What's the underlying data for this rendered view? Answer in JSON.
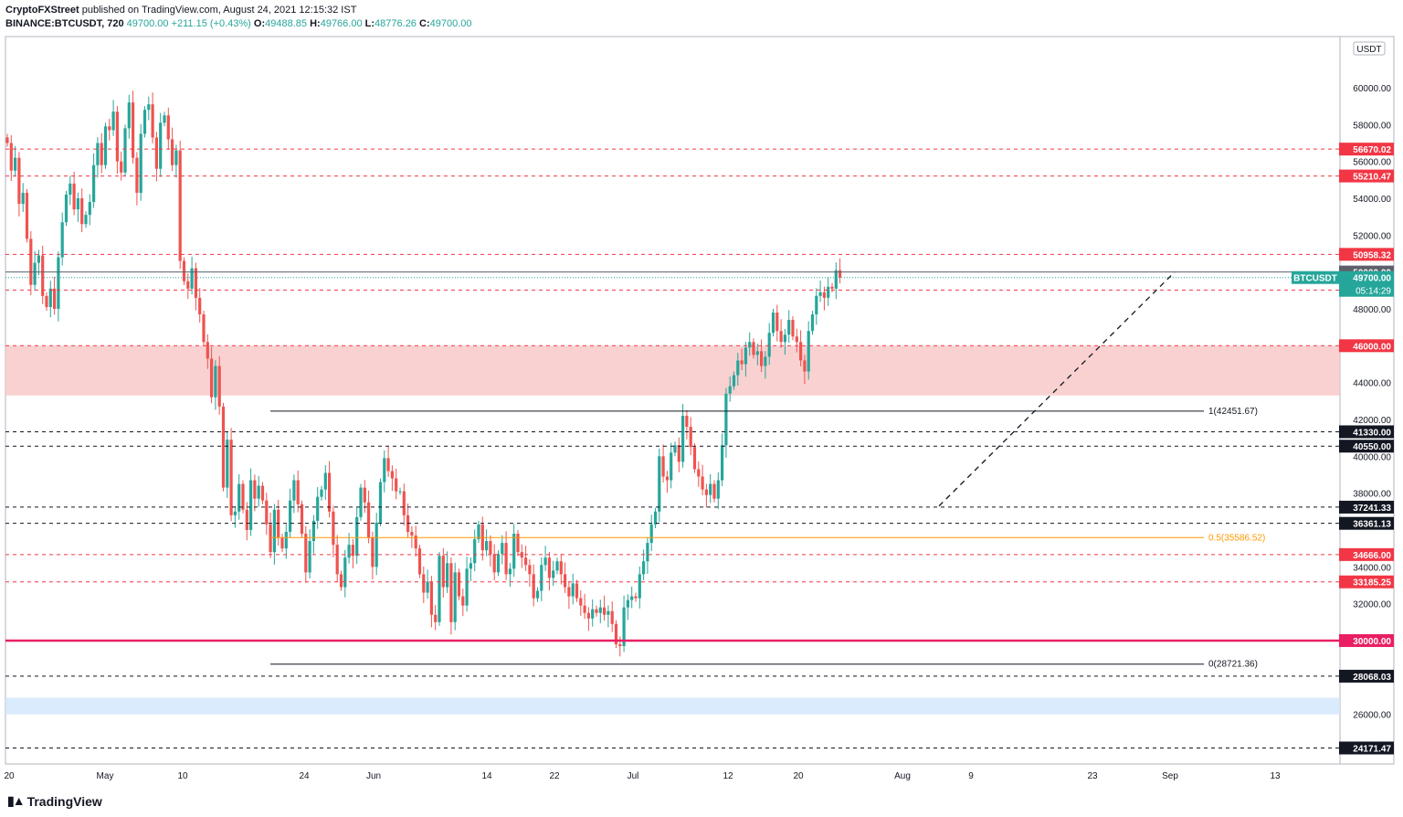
{
  "header": {
    "author": "CryptoFXStreet",
    "published": "published on TradingView.com, August 24, 2021 12:15:32 IST",
    "symbol": "BINANCE:BTCUSDT, 720",
    "last": "49700.00",
    "change": "+211.15 (+0.43%)",
    "o_label": "O:",
    "o": "49488.85",
    "h_label": "H:",
    "h": "49766.00",
    "l_label": "L:",
    "l": "48776.26",
    "c_label": "C:",
    "c": "49700.00"
  },
  "footer": {
    "brand": "TradingView"
  },
  "chart_data": {
    "type": "candlestick",
    "currency": "USDT",
    "x_tick_labels": [
      "20",
      "May",
      "10",
      "24",
      "Jun",
      "14",
      "22",
      "Jul",
      "12",
      "20",
      "Aug",
      "9",
      "23",
      "Sep",
      "13"
    ],
    "y_tick_labels": [
      "60000.00",
      "58000.00",
      "56000.00",
      "54000.00",
      "52000.00",
      "50000.00",
      "48000.00",
      "46000.00",
      "44000.00",
      "42000.00",
      "40000.00",
      "38000.00",
      "36000.00",
      "34000.00",
      "32000.00",
      "30000.00",
      "28000.00",
      "26000.00"
    ],
    "ylim": [
      23000,
      62500
    ],
    "price_levels": [
      {
        "value": 56670.02,
        "label": "56670.02",
        "style": "dashed",
        "color": "#f23645"
      },
      {
        "value": 55210.47,
        "label": "55210.47",
        "style": "dashed",
        "color": "#f23645"
      },
      {
        "value": 50958.32,
        "label": "50958.32",
        "style": "dashed",
        "color": "#f23645"
      },
      {
        "value": 50000.0,
        "label": "50000.00",
        "style": "solid",
        "color": "#5d606b"
      },
      {
        "value": 49024.12,
        "label": "49024.12",
        "style": "dashed",
        "color": "#f23645"
      },
      {
        "value": 46000.0,
        "label": "46000.00",
        "style": "dashed",
        "color": "#f23645"
      },
      {
        "value": 41330.0,
        "label": "41330.00",
        "style": "dashed",
        "color": "#131722"
      },
      {
        "value": 40550.0,
        "label": "40550.00",
        "style": "dashed",
        "color": "#131722"
      },
      {
        "value": 37241.33,
        "label": "37241.33",
        "style": "dashed",
        "color": "#131722"
      },
      {
        "value": 36361.13,
        "label": "36361.13",
        "style": "dashed",
        "color": "#131722"
      },
      {
        "value": 34666.0,
        "label": "34666.00",
        "style": "dashed",
        "color": "#f23645"
      },
      {
        "value": 33185.25,
        "label": "33185.25",
        "style": "dashed",
        "color": "#f23645"
      },
      {
        "value": 30000.0,
        "label": "30000.00",
        "style": "solid",
        "color": "#e91e63"
      },
      {
        "value": 28068.03,
        "label": "28068.03",
        "style": "dashed",
        "color": "#131722"
      },
      {
        "value": 24171.47,
        "label": "24171.47",
        "style": "dashed",
        "color": "#131722"
      }
    ],
    "last_price": {
      "symbol": "BTCUSDT",
      "value": 49700.0,
      "label": "49700.00",
      "countdown": "05:14:29"
    },
    "fib_levels": [
      {
        "label": "1(42451.67)",
        "value": 42451.67,
        "color": "#131722"
      },
      {
        "label": "0.5(35586.52)",
        "value": 35586.52,
        "color": "#ff9800"
      },
      {
        "label": "0(28721.36)",
        "value": 28721.36,
        "color": "#131722"
      }
    ],
    "zones": [
      {
        "from": 43300,
        "to": 46000,
        "color": "#f7c5c5"
      },
      {
        "from": 26000,
        "to": 26900,
        "color": "#cfe6fb"
      }
    ],
    "trendline": {
      "from": {
        "date": "2021-08-05",
        "value": 37300
      },
      "to": {
        "date": "2021-09-01",
        "value": 50000
      },
      "style": "dashed"
    },
    "candles_close": [
      57000,
      55500,
      56200,
      53700,
      54300,
      51800,
      49300,
      50500,
      50900,
      48700,
      48100,
      49100,
      48000,
      50800,
      52700,
      54200,
      54800,
      53400,
      54000,
      52600,
      53100,
      53800,
      55800,
      57000,
      55800,
      57900,
      57700,
      58700,
      56000,
      55400,
      57800,
      59200,
      56200,
      54300,
      57500,
      58800,
      59100,
      57300,
      55600,
      58100,
      58500,
      57200,
      55800,
      56600,
      50600,
      49500,
      49100,
      50200,
      48600,
      47700,
      46200,
      45300,
      43200,
      44900,
      42700,
      38300,
      40900,
      36800,
      37000,
      38500,
      37100,
      36000,
      38700,
      37700,
      38400,
      37600,
      36300,
      34800,
      37100,
      35600,
      35000,
      35900,
      37600,
      38700,
      37400,
      35800,
      33700,
      35400,
      36500,
      37800,
      38200,
      39100,
      37000,
      35200,
      33600,
      32900,
      34500,
      35200,
      34600,
      36700,
      38300,
      37500,
      35600,
      34000,
      36400,
      38600,
      39900,
      39200,
      38800,
      38100,
      38100,
      36800,
      35900,
      35700,
      35000,
      33600,
      32600,
      33200,
      31400,
      31000,
      34600,
      32900,
      34200,
      31000,
      33700,
      32400,
      31900,
      33900,
      34200,
      35500,
      36300,
      34900,
      35400,
      34700,
      33700,
      34700,
      35300,
      33600,
      33900,
      35800,
      34800,
      34500,
      34100,
      33600,
      32300,
      32700,
      34100,
      34500,
      33400,
      33800,
      34300,
      33600,
      32900,
      32400,
      33100,
      32300,
      31900,
      31500,
      31200,
      31700,
      31500,
      31800,
      31400,
      31600,
      30900,
      29800,
      29700,
      31800,
      32200,
      32400,
      32300,
      33600,
      34300,
      35300,
      36300,
      37000,
      40000,
      38900,
      38700,
      40200,
      40600,
      39700,
      42200,
      41600,
      40500,
      39300,
      38900,
      38200,
      37900,
      38500,
      37700,
      38700,
      40600,
      43400,
      43800,
      44400,
      45200,
      45000,
      45900,
      46200,
      45500,
      45700,
      44900,
      45400,
      46700,
      47800,
      46800,
      46200,
      46600,
      47400,
      46500,
      46200,
      45200,
      44600,
      46800,
      47700,
      48700,
      48900,
      48600,
      49200,
      49100,
      50100,
      49700
    ]
  }
}
